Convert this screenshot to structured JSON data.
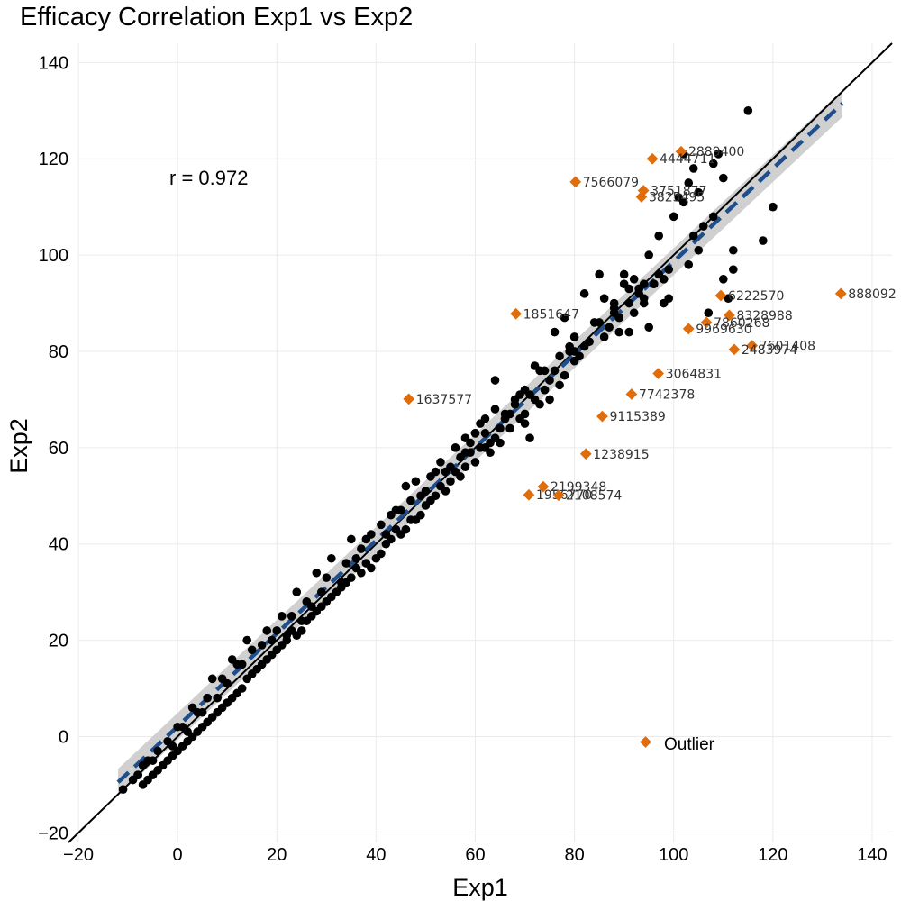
{
  "chart_data": {
    "type": "scatter",
    "title": "Efficacy Correlation Exp1 vs Exp2",
    "xlabel": "Exp1",
    "ylabel": "Exp2",
    "xlim": [
      -20,
      144
    ],
    "ylim": [
      -22,
      144
    ],
    "xticks": [
      -20,
      0,
      20,
      40,
      60,
      80,
      100,
      120,
      140
    ],
    "yticks": [
      -20,
      0,
      20,
      40,
      60,
      80,
      100,
      120,
      140
    ],
    "xtick_labels": [
      "−20",
      "0",
      "20",
      "40",
      "60",
      "80",
      "100",
      "120",
      "140"
    ],
    "ytick_labels": [
      "−20",
      "0",
      "20",
      "40",
      "60",
      "80",
      "100",
      "120",
      "140"
    ],
    "grid": true,
    "legend_position": "bottom-right",
    "annotation": "r = 0.972",
    "colors": {
      "points": "#000000",
      "outlier": "#e06c0a",
      "fit": "#1f4e8c",
      "band": "#c8c8c8",
      "identity": "#000000"
    },
    "identity_line": {
      "slope": 1,
      "intercept": 0
    },
    "fit_line": {
      "x": [
        -12,
        134
      ],
      "y": [
        -9.5,
        131.5
      ],
      "band_halfwidth_low": 1.5,
      "band_halfwidth_high": 2.8
    },
    "series": [
      {
        "name": "",
        "x": [
          115,
          109,
          108,
          103,
          104,
          102,
          110,
          105,
          101,
          120,
          118,
          112,
          108,
          106,
          104,
          103,
          110,
          112,
          97,
          95,
          93,
          96,
          98,
          99,
          93,
          92,
          90,
          91,
          88,
          89,
          87,
          85,
          86,
          88,
          93,
          94,
          95,
          91,
          89,
          83,
          82,
          80,
          81,
          79,
          76,
          75,
          77,
          74,
          72,
          71,
          68,
          70,
          69,
          67,
          66,
          65,
          63,
          64,
          62,
          61,
          60,
          59,
          58,
          57,
          56,
          55,
          54,
          53,
          52,
          51,
          50,
          49,
          48,
          47,
          46,
          45,
          44,
          43,
          42,
          41,
          40,
          39,
          38,
          37,
          36,
          35,
          34,
          33,
          32,
          31,
          30,
          29,
          28,
          27,
          26,
          25,
          24,
          23,
          22,
          21,
          20,
          19,
          18,
          17,
          16,
          15,
          14,
          13,
          12,
          11,
          10,
          9,
          8,
          7,
          6,
          5,
          4,
          3,
          2,
          1,
          0,
          -1,
          -2,
          -3,
          -4,
          -5,
          -6,
          -7,
          -8,
          -9,
          -11,
          62,
          66,
          71,
          75,
          64,
          69,
          73,
          59,
          55,
          51,
          47,
          44,
          42,
          38,
          36,
          33,
          29,
          27,
          25,
          22,
          19,
          15,
          12,
          9,
          6,
          4,
          1,
          -2,
          -6,
          -8,
          58,
          60,
          63,
          61,
          67,
          74,
          78,
          80,
          84,
          76,
          72,
          70,
          65,
          57,
          53,
          48,
          46,
          43,
          39,
          35,
          31,
          28,
          24,
          21,
          18,
          14,
          11,
          7,
          3,
          0,
          -4,
          -7,
          78,
          82,
          85,
          90,
          93,
          97,
          100,
          102,
          105,
          98,
          96,
          94,
          92,
          89,
          86,
          80,
          77,
          73,
          70,
          68,
          64,
          60,
          56,
          52,
          49,
          45,
          41,
          37,
          34,
          30,
          26,
          23,
          20,
          17,
          13,
          10,
          8,
          5,
          2,
          -1,
          -5,
          -8,
          107,
          111,
          99,
          94,
          91,
          88,
          79,
          74,
          70,
          66,
          62,
          58,
          54,
          50
        ],
        "y": [
          130,
          121,
          119,
          115,
          118,
          121,
          116,
          113,
          112,
          110,
          103,
          101,
          108,
          106,
          104,
          98,
          95,
          97,
          96,
          100,
          93,
          94,
          95,
          91,
          92,
          95,
          94,
          90,
          89,
          87,
          85,
          86,
          91,
          88,
          93,
          90,
          85,
          84,
          87,
          82,
          81,
          80,
          79,
          80,
          76,
          74,
          73,
          72,
          70,
          71,
          69,
          67,
          66,
          67,
          66,
          64,
          61,
          62,
          60,
          60,
          57,
          59,
          56,
          54,
          55,
          53,
          51,
          52,
          50,
          49,
          48,
          46,
          45,
          45,
          43,
          42,
          43,
          41,
          40,
          38,
          37,
          35,
          36,
          34,
          35,
          33,
          32,
          31,
          30,
          29,
          28,
          27,
          26,
          25,
          24,
          22,
          21,
          22,
          20,
          19,
          18,
          17,
          16,
          15,
          14,
          13,
          12,
          10,
          9,
          8,
          7,
          6,
          5,
          4,
          3,
          2,
          1,
          0,
          -1,
          -2,
          -3,
          -4,
          -5,
          -6,
          -7,
          -8,
          -9,
          -10,
          -8,
          -9,
          -11,
          66,
          67,
          62,
          70,
          74,
          71,
          69,
          61,
          56,
          54,
          49,
          47,
          42,
          41,
          37,
          32,
          30,
          27,
          24,
          21,
          20,
          18,
          15,
          12,
          8,
          5,
          2,
          -1,
          -5,
          -8,
          62,
          63,
          59,
          65,
          64,
          72,
          75,
          83,
          86,
          84,
          77,
          65,
          61,
          58,
          57,
          53,
          52,
          46,
          42,
          41,
          37,
          34,
          30,
          25,
          22,
          20,
          16,
          12,
          6,
          2,
          -3,
          -6,
          87,
          92,
          96,
          96,
          93,
          104,
          108,
          111,
          101,
          90,
          94,
          91,
          88,
          84,
          83,
          78,
          79,
          76,
          72,
          70,
          68,
          63,
          60,
          55,
          50,
          47,
          44,
          39,
          36,
          33,
          28,
          25,
          22,
          19,
          15,
          11,
          8,
          5,
          1,
          -2,
          -5,
          -8,
          88,
          91,
          97,
          94,
          93,
          90,
          81,
          76,
          72,
          66,
          63,
          59,
          55,
          51
        ]
      },
      {
        "name": "Outlier",
        "x": [
          101.5,
          95.7,
          93.9,
          93.5,
          80.2,
          109.5,
          111.2,
          106.6,
          103.0,
          115.8,
          112.2,
          68.2,
          96.9,
          91.5,
          46.6,
          85.6,
          82.3,
          73.7,
          70.8,
          76.8,
          133.7
        ],
        "y": [
          121.5,
          120.0,
          113.4,
          112.1,
          115.2,
          91.6,
          87.5,
          86.0,
          84.7,
          81.2,
          80.4,
          87.8,
          75.4,
          71.1,
          70.1,
          66.5,
          58.7,
          51.9,
          50.2,
          50.1,
          92.0
        ],
        "labels": [
          "2889400",
          "4444711",
          "3751877",
          "3825495",
          "7566079",
          "6222570",
          "8328988",
          "7860268",
          "9969630",
          "7601408",
          "2483974",
          "1851647",
          "3064831",
          "7742378",
          "1637577",
          "9115389",
          "1238915",
          "2199348",
          "1956770",
          "2108574",
          "888092"
        ]
      }
    ]
  }
}
